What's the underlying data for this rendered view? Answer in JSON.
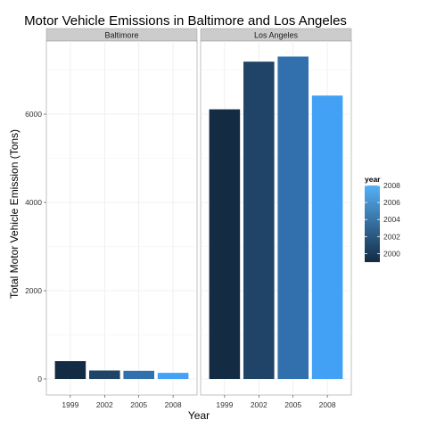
{
  "chart_data": {
    "type": "bar",
    "title": "Motor Vehicle Emissions in Baltimore and Los Angeles",
    "xlabel": "Year",
    "ylabel": "Total Motor Vehicle Emission (Tons)",
    "ylim": [
      0,
      7600
    ],
    "y_ticks": [
      0,
      2000,
      4000,
      6000
    ],
    "y_tick_labels": [
      "0",
      "2000",
      "4000",
      "6000"
    ],
    "grid": true,
    "categories": [
      "1999",
      "2002",
      "2005",
      "2008"
    ],
    "facets": [
      {
        "label": "Baltimore",
        "values": [
          403.8,
          192.0,
          185.4,
          138.2
        ]
      },
      {
        "label": "Los Angeles",
        "values": [
          6109,
          7189,
          7304,
          6421
        ]
      }
    ],
    "fill_colors": [
      "#132B43",
      "#1F4467",
      "#3170AD",
      "#43A1F5"
    ],
    "legend": {
      "title": "year",
      "placement": "right",
      "ticks": [
        "2000",
        "2002",
        "2004",
        "2006",
        "2008"
      ],
      "tick_values": [
        2000,
        2002,
        2004,
        2006,
        2008
      ],
      "range": [
        1999,
        2008
      ],
      "gradient_low": "#132B43",
      "gradient_high": "#56B1F7"
    }
  }
}
